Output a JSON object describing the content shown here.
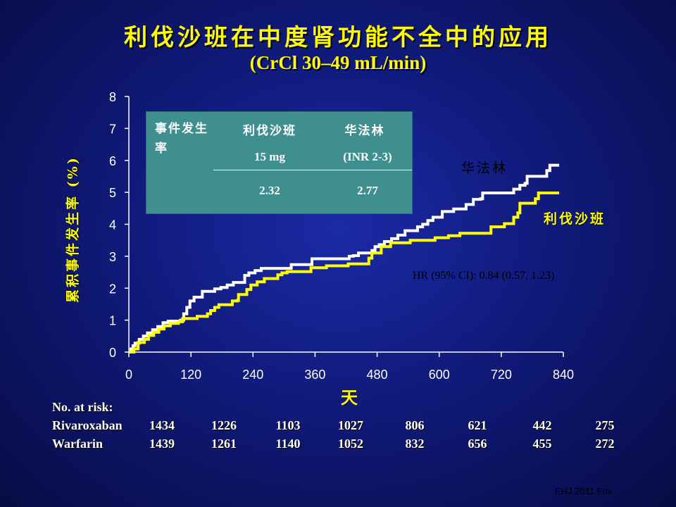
{
  "title": "利伐沙班在中度肾功能不全中的应用",
  "subtitle": "(CrCl 30–49 mL/min)",
  "stats_table": {
    "header_label": "事件发生率",
    "col1_name": "利伐沙班",
    "col1_dose": "15 mg",
    "col2_name": "华法林",
    "col2_dose": "(INR 2-3)",
    "col1_value": "2.32",
    "col2_value": "2.77"
  },
  "annotation_warfarin": "华法林",
  "annotation_rivaroxaban": "利伐沙班",
  "hr_text": "HR (95% CI): 0.84 (0.57, 1.23)",
  "risk_table": {
    "heading": "No. at risk:",
    "rows": [
      {
        "label": "Rivaroxaban",
        "values": [
          "1434",
          "1226",
          "1103",
          "1027",
          "806",
          "621",
          "442",
          "275"
        ]
      },
      {
        "label": "Warfarin",
        "values": [
          "1439",
          "1261",
          "1140",
          "1052",
          "832",
          "656",
          "455",
          "272"
        ]
      }
    ]
  },
  "source": "EHJ 2011 Fox",
  "colors": {
    "rivaroxaban": "#ffff00",
    "warfarin": "#ffffff",
    "title": "#ffff00",
    "table_bg": "#3f8f8f"
  },
  "chart_data": {
    "type": "line",
    "xlabel": "天",
    "ylabel": "累积事件发生率 (%)",
    "xlim": [
      0,
      840
    ],
    "ylim": [
      0,
      8
    ],
    "xticks": [
      0,
      120,
      240,
      360,
      480,
      600,
      720,
      840
    ],
    "yticks": [
      0,
      1,
      2,
      3,
      4,
      5,
      6,
      7,
      8
    ],
    "grid": false,
    "series": [
      {
        "name": "华法林",
        "color": "#ffffff",
        "points": [
          [
            0,
            0
          ],
          [
            4,
            0.1
          ],
          [
            8,
            0.2
          ],
          [
            12,
            0.28
          ],
          [
            20,
            0.4
          ],
          [
            28,
            0.5
          ],
          [
            36,
            0.6
          ],
          [
            46,
            0.7
          ],
          [
            56,
            0.8
          ],
          [
            66,
            0.92
          ],
          [
            76,
            0.97
          ],
          [
            100,
            1.0
          ],
          [
            106,
            1.2
          ],
          [
            112,
            1.4
          ],
          [
            118,
            1.6
          ],
          [
            126,
            1.72
          ],
          [
            136,
            1.72
          ],
          [
            142,
            1.9
          ],
          [
            160,
            1.9
          ],
          [
            166,
            1.98
          ],
          [
            178,
            2.02
          ],
          [
            190,
            2.1
          ],
          [
            202,
            2.18
          ],
          [
            216,
            2.18
          ],
          [
            224,
            2.4
          ],
          [
            232,
            2.48
          ],
          [
            244,
            2.55
          ],
          [
            256,
            2.62
          ],
          [
            300,
            2.62
          ],
          [
            314,
            2.74
          ],
          [
            350,
            2.74
          ],
          [
            354,
            2.92
          ],
          [
            420,
            2.92
          ],
          [
            426,
            3.0
          ],
          [
            434,
            3.02
          ],
          [
            444,
            3.1
          ],
          [
            470,
            3.18
          ],
          [
            476,
            3.3
          ],
          [
            484,
            3.36
          ],
          [
            494,
            3.46
          ],
          [
            508,
            3.55
          ],
          [
            520,
            3.66
          ],
          [
            534,
            3.8
          ],
          [
            554,
            3.8
          ],
          [
            558,
            3.92
          ],
          [
            568,
            4.0
          ],
          [
            578,
            4.12
          ],
          [
            588,
            4.22
          ],
          [
            606,
            4.4
          ],
          [
            624,
            4.4
          ],
          [
            628,
            4.48
          ],
          [
            648,
            4.48
          ],
          [
            652,
            4.62
          ],
          [
            666,
            4.78
          ],
          [
            680,
            4.8
          ],
          [
            684,
            4.98
          ],
          [
            740,
            4.98
          ],
          [
            744,
            5.1
          ],
          [
            756,
            5.22
          ],
          [
            766,
            5.28
          ],
          [
            770,
            5.5
          ],
          [
            804,
            5.5
          ],
          [
            808,
            5.68
          ],
          [
            814,
            5.85
          ],
          [
            832,
            5.85
          ]
        ]
      },
      {
        "name": "利伐沙班",
        "color": "#ffff00",
        "points": [
          [
            0,
            0
          ],
          [
            10,
            0.1
          ],
          [
            18,
            0.3
          ],
          [
            30,
            0.4
          ],
          [
            38,
            0.52
          ],
          [
            48,
            0.62
          ],
          [
            58,
            0.72
          ],
          [
            68,
            0.82
          ],
          [
            80,
            0.9
          ],
          [
            96,
            0.95
          ],
          [
            104,
            1.05
          ],
          [
            128,
            1.05
          ],
          [
            132,
            1.12
          ],
          [
            146,
            1.12
          ],
          [
            152,
            1.2
          ],
          [
            158,
            1.3
          ],
          [
            166,
            1.4
          ],
          [
            174,
            1.48
          ],
          [
            196,
            1.48
          ],
          [
            200,
            1.6
          ],
          [
            210,
            1.62
          ],
          [
            212,
            1.8
          ],
          [
            224,
            1.8
          ],
          [
            228,
            1.96
          ],
          [
            236,
            2.1
          ],
          [
            248,
            2.2
          ],
          [
            262,
            2.3
          ],
          [
            284,
            2.3
          ],
          [
            288,
            2.42
          ],
          [
            296,
            2.48
          ],
          [
            306,
            2.52
          ],
          [
            346,
            2.52
          ],
          [
            352,
            2.64
          ],
          [
            378,
            2.64
          ],
          [
            382,
            2.7
          ],
          [
            420,
            2.7
          ],
          [
            424,
            2.76
          ],
          [
            456,
            2.76
          ],
          [
            464,
            2.94
          ],
          [
            470,
            3.1
          ],
          [
            484,
            3.1
          ],
          [
            488,
            3.3
          ],
          [
            502,
            3.3
          ],
          [
            506,
            3.42
          ],
          [
            536,
            3.42
          ],
          [
            544,
            3.5
          ],
          [
            582,
            3.5
          ],
          [
            592,
            3.58
          ],
          [
            618,
            3.64
          ],
          [
            640,
            3.72
          ],
          [
            690,
            3.72
          ],
          [
            700,
            3.92
          ],
          [
            718,
            3.92
          ],
          [
            726,
            4.02
          ],
          [
            740,
            4.02
          ],
          [
            744,
            4.22
          ],
          [
            752,
            4.36
          ],
          [
            756,
            4.66
          ],
          [
            778,
            4.66
          ],
          [
            786,
            4.8
          ],
          [
            792,
            4.98
          ],
          [
            832,
            4.98
          ]
        ]
      }
    ]
  }
}
